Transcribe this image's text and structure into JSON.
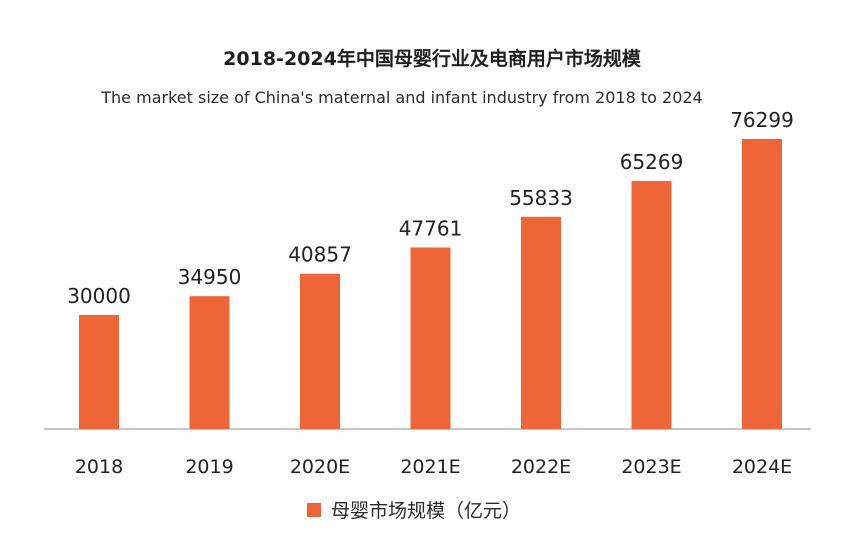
{
  "chart_data": {
    "type": "bar",
    "title": "2018-2024年中国母婴行业及电商用户市场规模",
    "subtitle": "The market size of China's maternal and infant industry from 2018 to 2024",
    "categories": [
      "2018",
      "2019",
      "2020E",
      "2021E",
      "2022E",
      "2023E",
      "2024E"
    ],
    "series": [
      {
        "name": "母婴市场规模（亿元）",
        "values": [
          30000,
          34950,
          40857,
          47761,
          55833,
          65269,
          76299
        ]
      }
    ],
    "data_labels": [
      "30000",
      "34950",
      "40857",
      "47761",
      "55833",
      "65269",
      "76299"
    ],
    "xlabel": "",
    "ylabel": "",
    "ylim": [
      0,
      76299
    ],
    "grid": false,
    "legend_position": "bottom-center",
    "bar_color": "#ee6637",
    "axis_color": "#b5b5b5"
  }
}
